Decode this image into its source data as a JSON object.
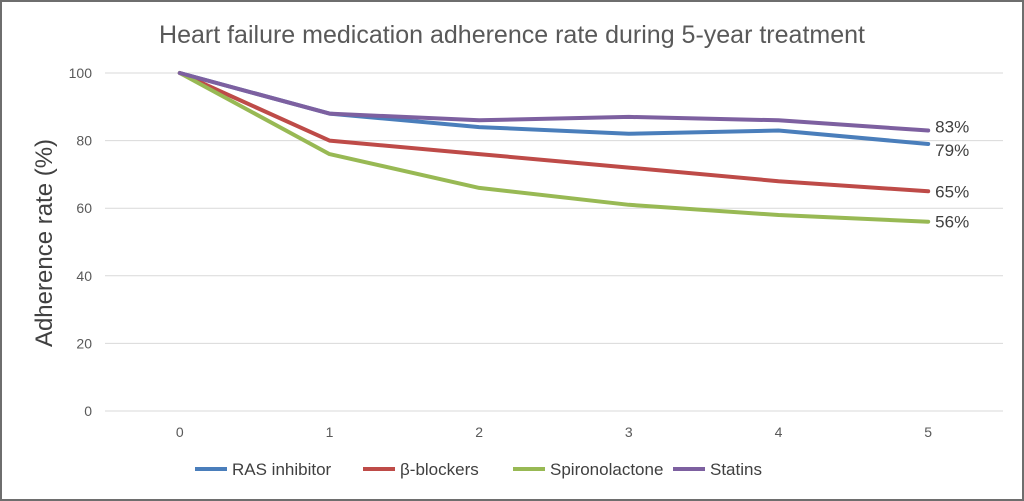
{
  "chart_data": {
    "type": "line",
    "title": "Heart failure medication adherence rate during 5-year treatment",
    "xlabel": "",
    "ylabel": "Adherence rate (%)",
    "x": [
      0,
      1,
      2,
      3,
      4,
      5
    ],
    "x_tick_labels": [
      "0",
      "1",
      "2",
      "3",
      "4",
      "5"
    ],
    "ylim": [
      0,
      100
    ],
    "y_ticks": [
      0,
      20,
      40,
      60,
      80,
      100
    ],
    "y_tick_labels": [
      "0",
      "20",
      "40",
      "60",
      "80",
      "100"
    ],
    "grid": true,
    "legend": "bottom",
    "series": [
      {
        "name": "RAS inhibitor",
        "color": "#4a7ebb",
        "values": [
          100,
          88,
          84,
          82,
          83,
          79
        ],
        "end_label": "79%"
      },
      {
        "name": "β-blockers",
        "color": "#be4b48",
        "values": [
          100,
          80,
          76,
          72,
          68,
          65
        ],
        "end_label": "65%"
      },
      {
        "name": "Spironolactone",
        "color": "#98b954",
        "values": [
          100,
          76,
          66,
          61,
          58,
          56
        ],
        "end_label": "56%"
      },
      {
        "name": "Statins",
        "color": "#7d60a0",
        "values": [
          100,
          88,
          86,
          87,
          86,
          83
        ],
        "end_label": "83%"
      }
    ]
  }
}
